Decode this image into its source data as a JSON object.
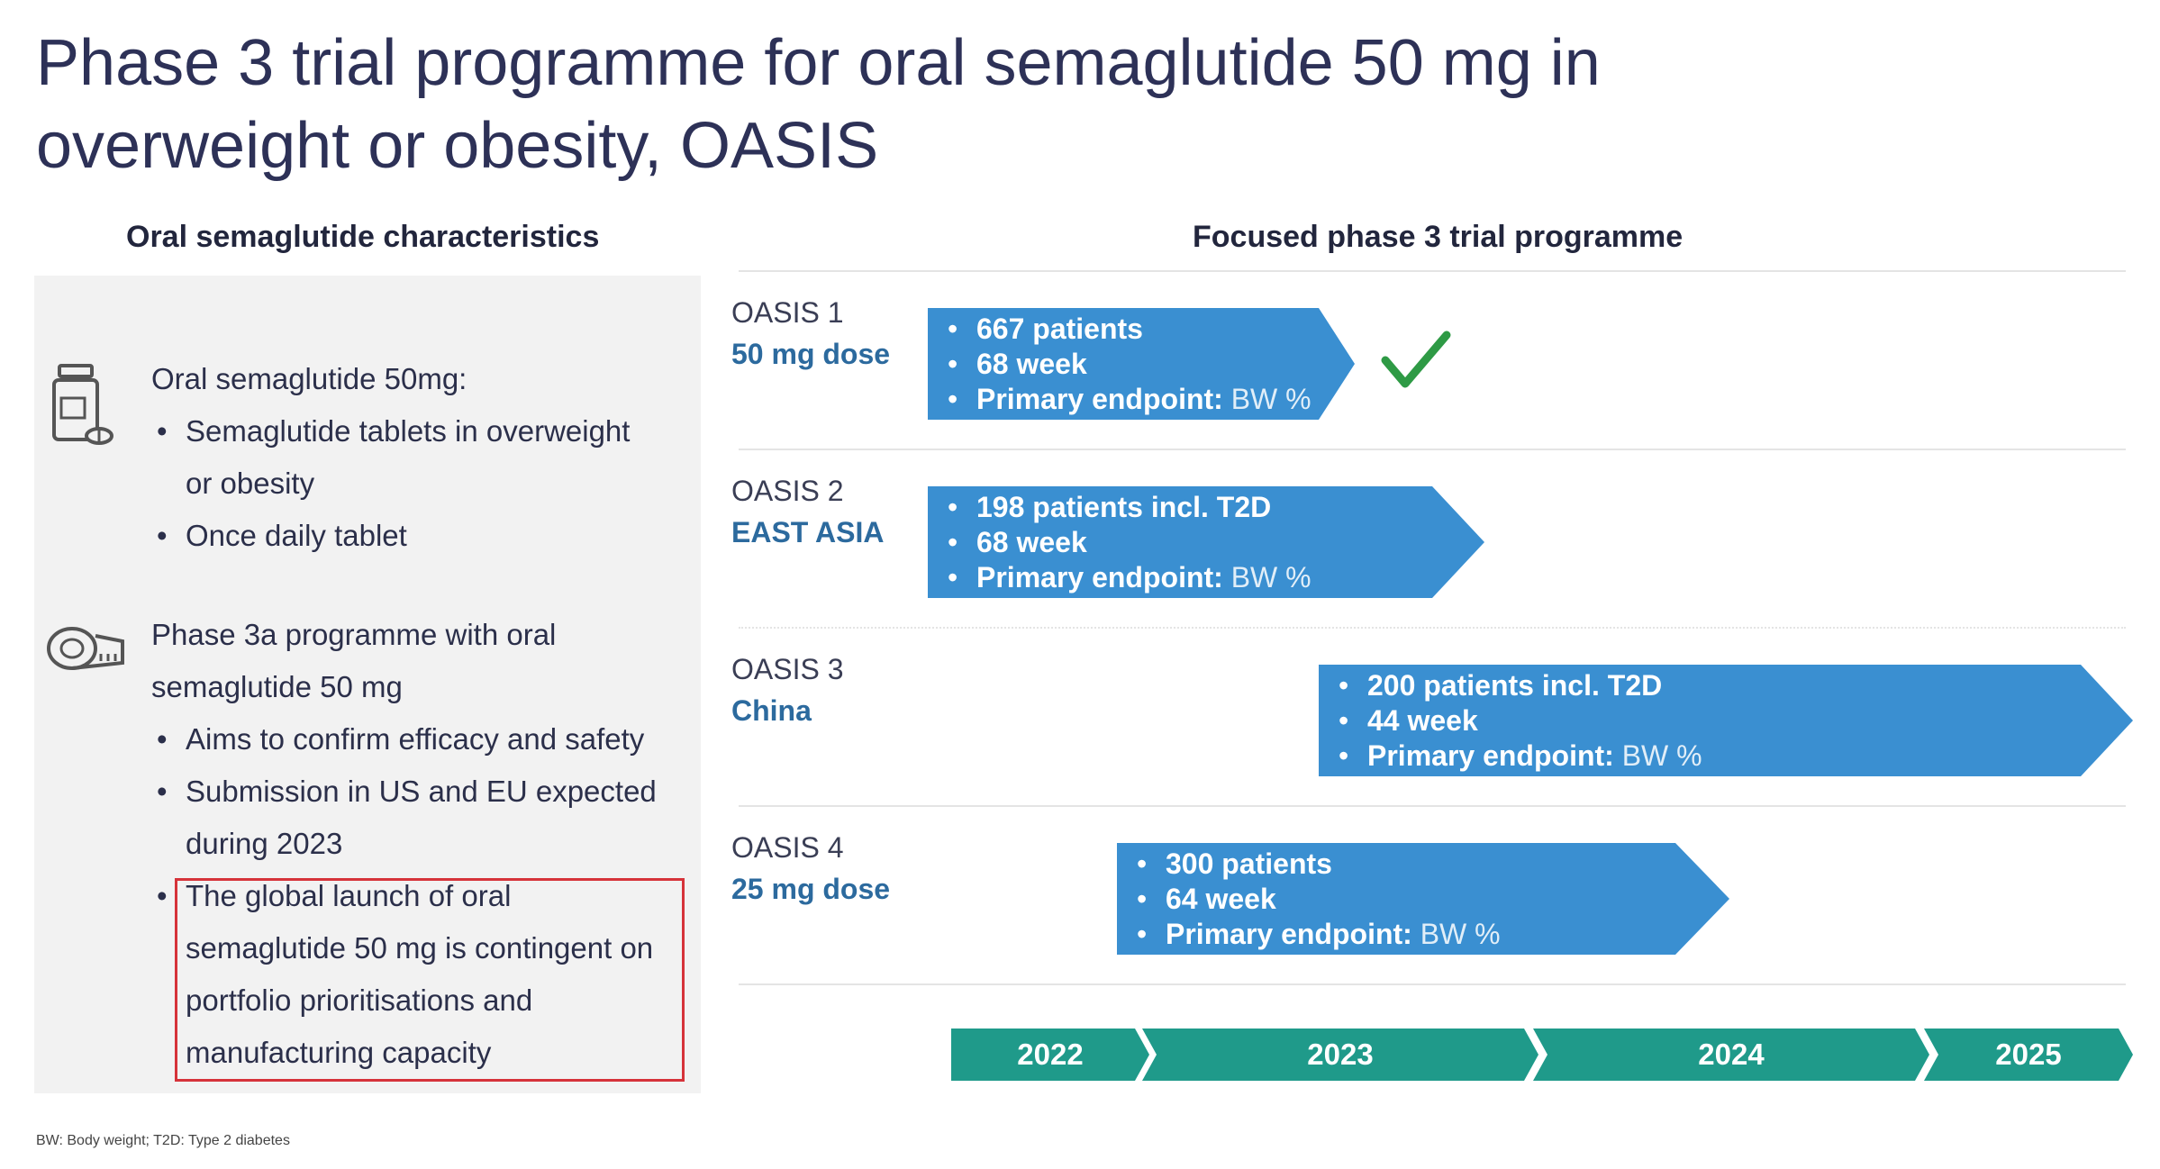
{
  "title_line1": "Phase 3 trial programme for oral semaglutide 50 mg in",
  "title_line2": "overweight or obesity, OASIS",
  "left": {
    "heading": "Oral semaglutide  characteristics",
    "block1": {
      "icon": "pill-bottle-icon",
      "intro": "Oral semaglutide 50mg:",
      "bullet1_line1": "Semaglutide tablets in overweight",
      "bullet1_line2": "or obesity",
      "bullet2": "Once daily tablet"
    },
    "block2": {
      "icon": "measuring-tape-icon",
      "intro_line1": "Phase 3a programme with oral",
      "intro_line2": "semaglutide 50 mg",
      "bullet1": "Aims to confirm efficacy and safety",
      "bullet2_line1": "Submission in US and EU expected",
      "bullet2_line2": "during 2023",
      "bullet3_line1": "The global launch of oral",
      "bullet3_line2": "semaglutide 50 mg is contingent on",
      "bullet3_line3": "portfolio prioritisations and",
      "bullet3_line4": "manufacturing capacity"
    },
    "highlight_color": "#d6333a"
  },
  "right": {
    "heading": "Focused phase 3 trial programme",
    "bar_color": "#3a8fd1",
    "check_color": "#2e9a45",
    "trials": [
      {
        "name": "OASIS 1",
        "sub": "50 mg dose",
        "line1": "667 patients",
        "line2": "68 week",
        "line3_bold": "Primary endpoint:",
        "line3_light": "BW %",
        "completed": true
      },
      {
        "name": "OASIS 2",
        "sub": "EAST ASIA",
        "line1": "198 patients incl. T2D",
        "line2": "68 week",
        "line3_bold": "Primary endpoint:",
        "line3_light": "BW %"
      },
      {
        "name": "OASIS 3",
        "sub": "China",
        "line1": "200 patients incl. T2D",
        "line2": "44 week",
        "line3_bold": "Primary endpoint:",
        "line3_light": "BW %"
      },
      {
        "name": "OASIS 4",
        "sub": "25 mg dose",
        "line1": "300 patients",
        "line2": "64 week",
        "line3_bold": "Primary endpoint:",
        "line3_light": "BW %"
      }
    ],
    "timeline_color": "#1f9a8a",
    "years": [
      "2022",
      "2023",
      "2024",
      "2025"
    ]
  },
  "footnote": "BW: Body weight; T2D: Type 2 diabetes"
}
